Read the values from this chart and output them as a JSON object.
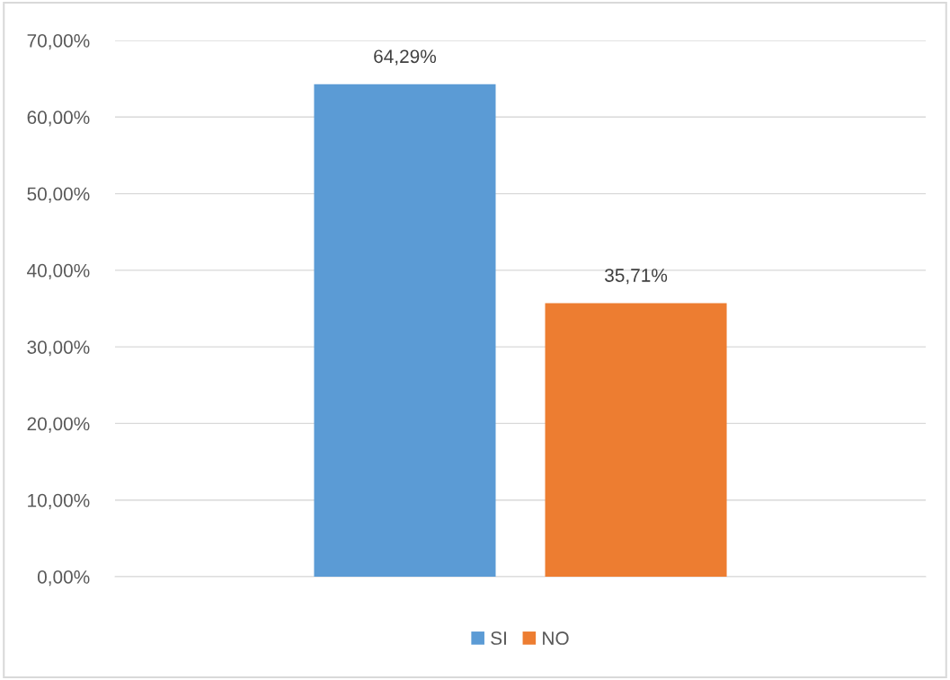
{
  "chart_data": {
    "type": "bar",
    "categories": [
      null
    ],
    "series": [
      {
        "name": "SI",
        "color": "#5b9bd5",
        "values": [
          64.29
        ],
        "value_labels": [
          "64,29%"
        ]
      },
      {
        "name": "NO",
        "color": "#ed7d31",
        "values": [
          35.71
        ],
        "value_labels": [
          "35,71%"
        ]
      }
    ],
    "ylim": [
      0,
      70
    ],
    "yticks": [
      {
        "value": 0,
        "label": "0,00%"
      },
      {
        "value": 10,
        "label": "10,00%"
      },
      {
        "value": 20,
        "label": "20,00%"
      },
      {
        "value": 30,
        "label": "30,00%"
      },
      {
        "value": 40,
        "label": "40,00%"
      },
      {
        "value": 50,
        "label": "50,00%"
      },
      {
        "value": 60,
        "label": "60,00%"
      },
      {
        "value": 70,
        "label": "70,00%"
      }
    ],
    "grid": "y",
    "legend": "bottom"
  }
}
